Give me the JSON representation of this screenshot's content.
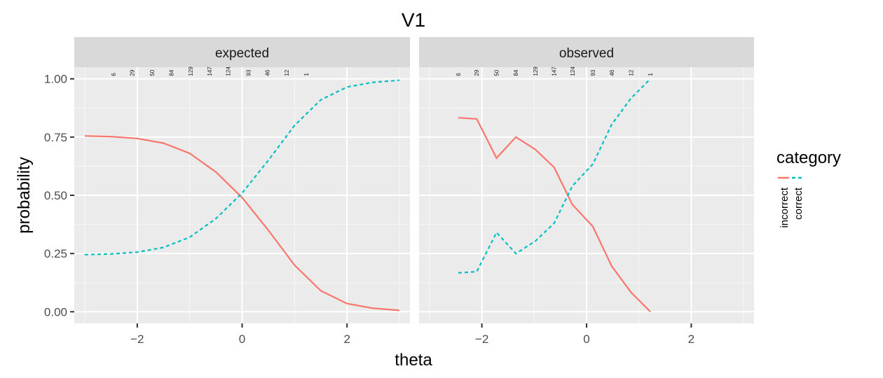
{
  "chart_data": {
    "type": "line",
    "title": "V1",
    "xlabel": "theta",
    "ylabel": "probability",
    "xlim": [
      -3.2,
      3.2
    ],
    "ylim": [
      -0.05,
      1.05
    ],
    "x_ticks": [
      -2,
      0,
      2
    ],
    "x_tick_labels": [
      "−2",
      "0",
      "2"
    ],
    "y_ticks": [
      0,
      0.25,
      0.5,
      0.75,
      1
    ],
    "y_tick_labels": [
      "0.00",
      "0.25",
      "0.50",
      "0.75",
      "1.00"
    ],
    "grid": true,
    "legend": {
      "title": "category",
      "position": "right",
      "entries": [
        {
          "label": "incorrect",
          "color": "#F8766D",
          "linetype": "solid"
        },
        {
          "label": "correct",
          "color": "#00BFC4",
          "linetype": "dashed"
        }
      ]
    },
    "counts": {
      "x": [
        -2.45,
        -2.1,
        -1.72,
        -1.35,
        -0.98,
        -0.62,
        -0.27,
        0.12,
        0.48,
        0.85,
        1.22
      ],
      "labels": [
        "6",
        "29",
        "50",
        "84",
        "129",
        "147",
        "124",
        "93",
        "46",
        "12",
        "1"
      ]
    },
    "panels": [
      {
        "name": "expected",
        "series": [
          {
            "name": "incorrect",
            "color": "#F8766D",
            "linetype": "solid",
            "x": [
              -3,
              -2.5,
              -2,
              -1.5,
              -1,
              -0.5,
              0,
              0.5,
              1,
              1.5,
              2,
              2.5,
              3
            ],
            "y": [
              0.755,
              0.752,
              0.744,
              0.724,
              0.68,
              0.6,
              0.49,
              0.35,
              0.2,
              0.09,
              0.035,
              0.015,
              0.006
            ]
          },
          {
            "name": "correct",
            "color": "#00BFC4",
            "linetype": "dashed",
            "x": [
              -3,
              -2.5,
              -2,
              -1.5,
              -1,
              -0.5,
              0,
              0.5,
              1,
              1.5,
              2,
              2.5,
              3
            ],
            "y": [
              0.245,
              0.248,
              0.256,
              0.276,
              0.32,
              0.4,
              0.51,
              0.65,
              0.8,
              0.91,
              0.965,
              0.985,
              0.994
            ]
          }
        ]
      },
      {
        "name": "observed",
        "series": [
          {
            "name": "incorrect",
            "color": "#F8766D",
            "linetype": "solid",
            "x": [
              -2.45,
              -2.1,
              -1.72,
              -1.35,
              -0.98,
              -0.62,
              -0.27,
              0.12,
              0.48,
              0.85,
              1.22
            ],
            "y": [
              0.833,
              0.828,
              0.66,
              0.75,
              0.697,
              0.62,
              0.46,
              0.366,
              0.196,
              0.083,
              0.0
            ]
          },
          {
            "name": "correct",
            "color": "#00BFC4",
            "linetype": "dashed",
            "x": [
              -2.45,
              -2.1,
              -1.72,
              -1.35,
              -0.98,
              -0.62,
              -0.27,
              0.12,
              0.48,
              0.85,
              1.22
            ],
            "y": [
              0.167,
              0.172,
              0.34,
              0.25,
              0.303,
              0.38,
              0.54,
              0.634,
              0.804,
              0.917,
              1.0
            ]
          }
        ]
      }
    ]
  }
}
